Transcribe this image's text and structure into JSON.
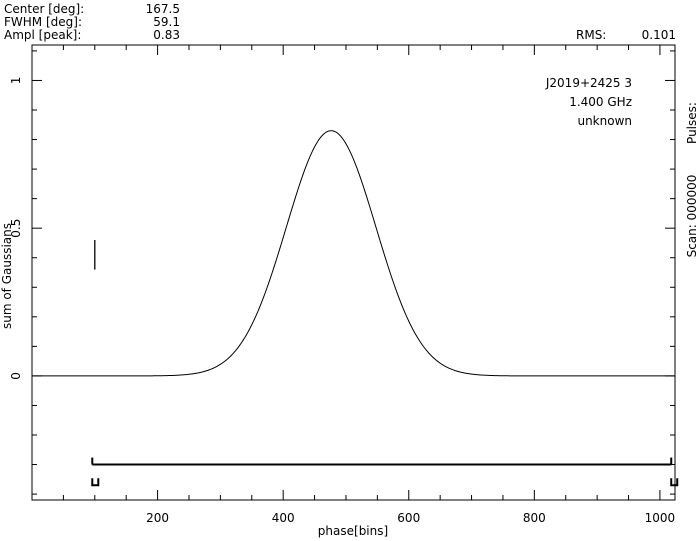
{
  "header": {
    "center_label": "Center [deg]:",
    "center_value": "167.5",
    "fwhm_label": "FWHM  [deg]:",
    "fwhm_value": "59.1",
    "ampl_label": "Ampl  [peak]:",
    "ampl_value": "0.83",
    "rms_label": "RMS:",
    "rms_value": "0.101"
  },
  "annotation": {
    "source": "J2019+2425 3",
    "frequency": "1.400 GHz",
    "status": "unknown"
  },
  "right_labels": {
    "pulses": "Pulses:",
    "scan": "Scan: 000000"
  },
  "chart_data": {
    "type": "line",
    "xlabel": "phase[bins]",
    "ylabel": "sum of Gaussians",
    "xlim": [
      0,
      1024
    ],
    "ylim": [
      -0.42,
      1.12
    ],
    "x_ticks": [
      200,
      400,
      600,
      800,
      1000
    ],
    "y_ticks": [
      0,
      0.5,
      1
    ],
    "x_minor_step": 50,
    "y_minor_step": 0.1,
    "grid": false,
    "series": [
      {
        "center_bin": 476.4,
        "fwhm_bins": 168.1,
        "amplitude": 0.83,
        "baseline": 0.0
      }
    ],
    "error_bar": {
      "x": 100,
      "y_low": 0.36,
      "y_high": 0.46
    },
    "on_pulse_window": {
      "x_start": 96,
      "x_end": 1018,
      "y": -0.3,
      "marker_y": -0.37
    }
  }
}
